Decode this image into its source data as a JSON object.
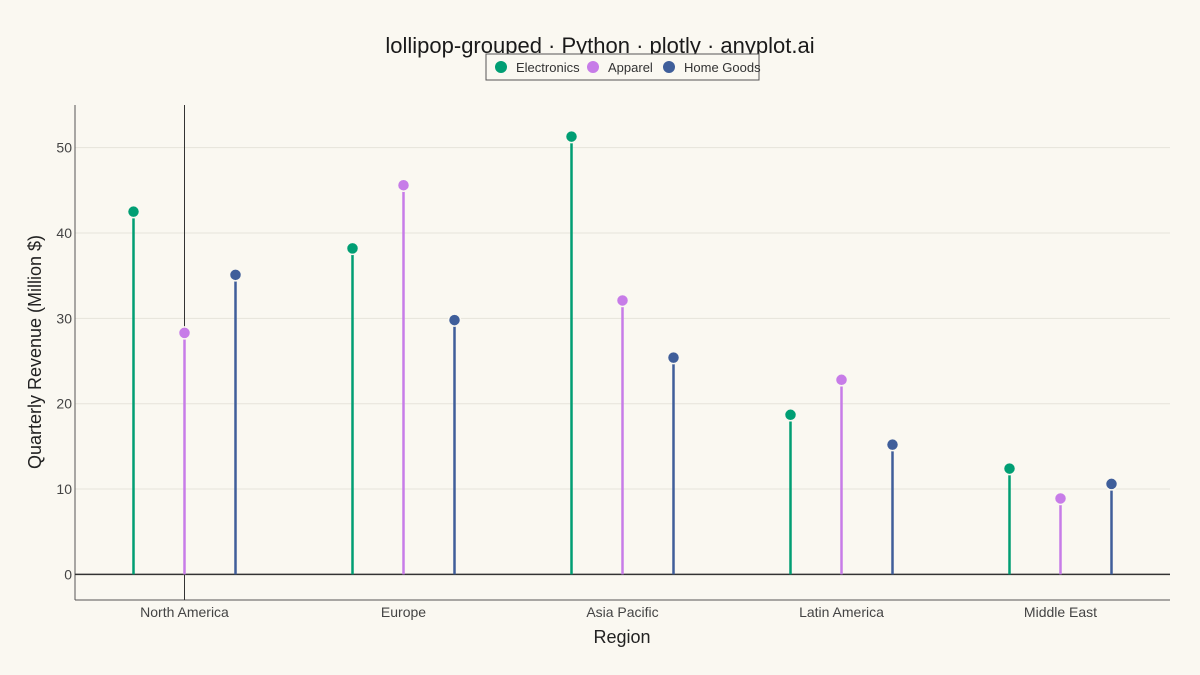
{
  "chart_data": {
    "type": "lollipop",
    "title": "lollipop-grouped · Python · plotly · anyplot.ai",
    "xlabel": "Region",
    "ylabel": "Quarterly Revenue (Million $)",
    "categories": [
      "North America",
      "Europe",
      "Asia Pacific",
      "Latin America",
      "Middle East"
    ],
    "series": [
      {
        "name": "Electronics",
        "color": "#009E73",
        "values": [
          42.5,
          38.2,
          51.3,
          18.7,
          12.4
        ]
      },
      {
        "name": "Apparel",
        "color": "#C77CE8",
        "values": [
          28.3,
          45.6,
          32.1,
          22.8,
          8.9
        ]
      },
      {
        "name": "Home Goods",
        "color": "#3F5E9A",
        "values": [
          35.1,
          29.8,
          25.4,
          15.2,
          10.6
        ]
      }
    ],
    "yticks": [
      0,
      10,
      20,
      30,
      40,
      50
    ],
    "ylim": [
      -3,
      55
    ],
    "grid": true,
    "legend_position": "top-center",
    "hover_line_category": "North America"
  }
}
